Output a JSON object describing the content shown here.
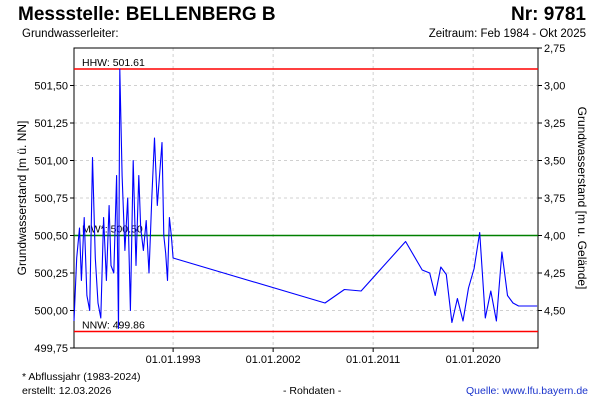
{
  "header": {
    "title": "Messstelle: BELLENBERG B",
    "station_number": "Nr: 9781",
    "subtitle_left": "Grundwasserleiter:",
    "subtitle_right": "Zeitraum: Feb 1984 - Okt 2025"
  },
  "footer": {
    "note": "* Abflussjahr (1983-2024)",
    "created": "erstellt:  12.03.2026",
    "raw": "- Rohdaten -",
    "source": "Quelle: www.lfu.bayern.de"
  },
  "chart_data": {
    "type": "line",
    "ylabel": "Grundwasserstand [m ü. NN]",
    "y2label": "Grundwasserstand [m u. Gelände]",
    "ylim": [
      499.75,
      501.75
    ],
    "xlim": [
      "1984-02-01",
      "2025-10-31"
    ],
    "grid": true,
    "yticks": [
      499.75,
      500.0,
      500.25,
      500.5,
      500.75,
      501.0,
      501.25,
      501.5
    ],
    "ytick_labels": [
      "499,75",
      "500,00",
      "500,25",
      "500,50",
      "500,75",
      "501,00",
      "501,25",
      "501,50"
    ],
    "y2ticks_values": [
      2.75,
      3.0,
      3.25,
      3.5,
      3.75,
      4.0,
      4.25,
      4.5
    ],
    "y2tick_labels": [
      "2,75",
      "3,00",
      "3,25",
      "3,50",
      "3,75",
      "4,00",
      "4,25",
      "4,50"
    ],
    "xticks": [
      "1993-01-01",
      "2002-01-01",
      "2011-01-01",
      "2020-01-01"
    ],
    "xtick_labels": [
      "01.01.1993",
      "01.01.2002",
      "01.01.2011",
      "01.01.2020"
    ],
    "reference_lines": [
      {
        "label": "HHW: 501.61",
        "value": 501.61,
        "color": "#ff0000"
      },
      {
        "label": "MW*: 500.50",
        "value": 500.5,
        "color": "#008000"
      },
      {
        "label": "NNW: 499.86",
        "value": 499.86,
        "color": "#ff0000"
      }
    ],
    "series": [
      {
        "color": "#0000ff",
        "x": [
          "1984-02-01",
          "1984-05-01",
          "1984-08-01",
          "1984-10-01",
          "1985-01-01",
          "1985-04-01",
          "1985-07-01",
          "1985-10-01",
          "1986-01-01",
          "1986-04-01",
          "1986-07-01",
          "1986-10-01",
          "1987-01-01",
          "1987-04-01",
          "1987-06-01",
          "1987-09-01",
          "1987-12-01",
          "1988-02-01",
          "1988-03-15",
          "1988-06-01",
          "1988-09-01",
          "1988-12-01",
          "1989-03-01",
          "1989-06-01",
          "1989-09-01",
          "1989-12-01",
          "1990-02-01",
          "1990-05-01",
          "1990-08-01",
          "1990-11-01",
          "1991-02-01",
          "1991-05-01",
          "1991-08-01",
          "1991-11-01",
          "1992-01-01",
          "1992-03-01",
          "1992-05-01",
          "1992-07-01",
          "1992-09-01",
          "1992-11-01",
          "1993-01-01",
          "2006-09-01",
          "2008-06-01",
          "2009-12-01",
          "2013-12-01",
          "2015-06-01",
          "2016-02-01",
          "2016-08-01",
          "2017-02-01",
          "2017-08-01",
          "2018-02-01",
          "2018-08-01",
          "2019-02-01",
          "2019-08-01",
          "2020-02-01",
          "2020-08-01",
          "2021-02-01",
          "2021-08-01",
          "2022-02-01",
          "2022-08-01",
          "2023-02-01",
          "2023-08-01",
          "2024-02-01",
          "2024-08-01",
          "2025-02-01",
          "2025-10-01"
        ],
        "y": [
          499.93,
          500.35,
          500.55,
          500.2,
          500.62,
          500.1,
          500.0,
          501.02,
          500.35,
          500.05,
          499.95,
          500.62,
          500.2,
          500.7,
          500.3,
          500.25,
          500.9,
          499.88,
          501.61,
          500.9,
          500.4,
          500.75,
          500.0,
          501.0,
          500.3,
          500.9,
          500.55,
          500.4,
          500.6,
          500.25,
          500.75,
          501.15,
          500.7,
          500.95,
          501.12,
          500.5,
          500.38,
          500.2,
          500.62,
          500.5,
          500.35,
          500.05,
          500.14,
          500.13,
          500.46,
          500.27,
          500.25,
          500.1,
          500.29,
          500.24,
          499.92,
          500.08,
          499.93,
          500.15,
          500.28,
          500.52,
          499.95,
          500.13,
          499.93,
          500.39,
          500.1,
          500.05,
          500.03,
          500.03,
          500.03,
          500.03
        ]
      }
    ]
  }
}
